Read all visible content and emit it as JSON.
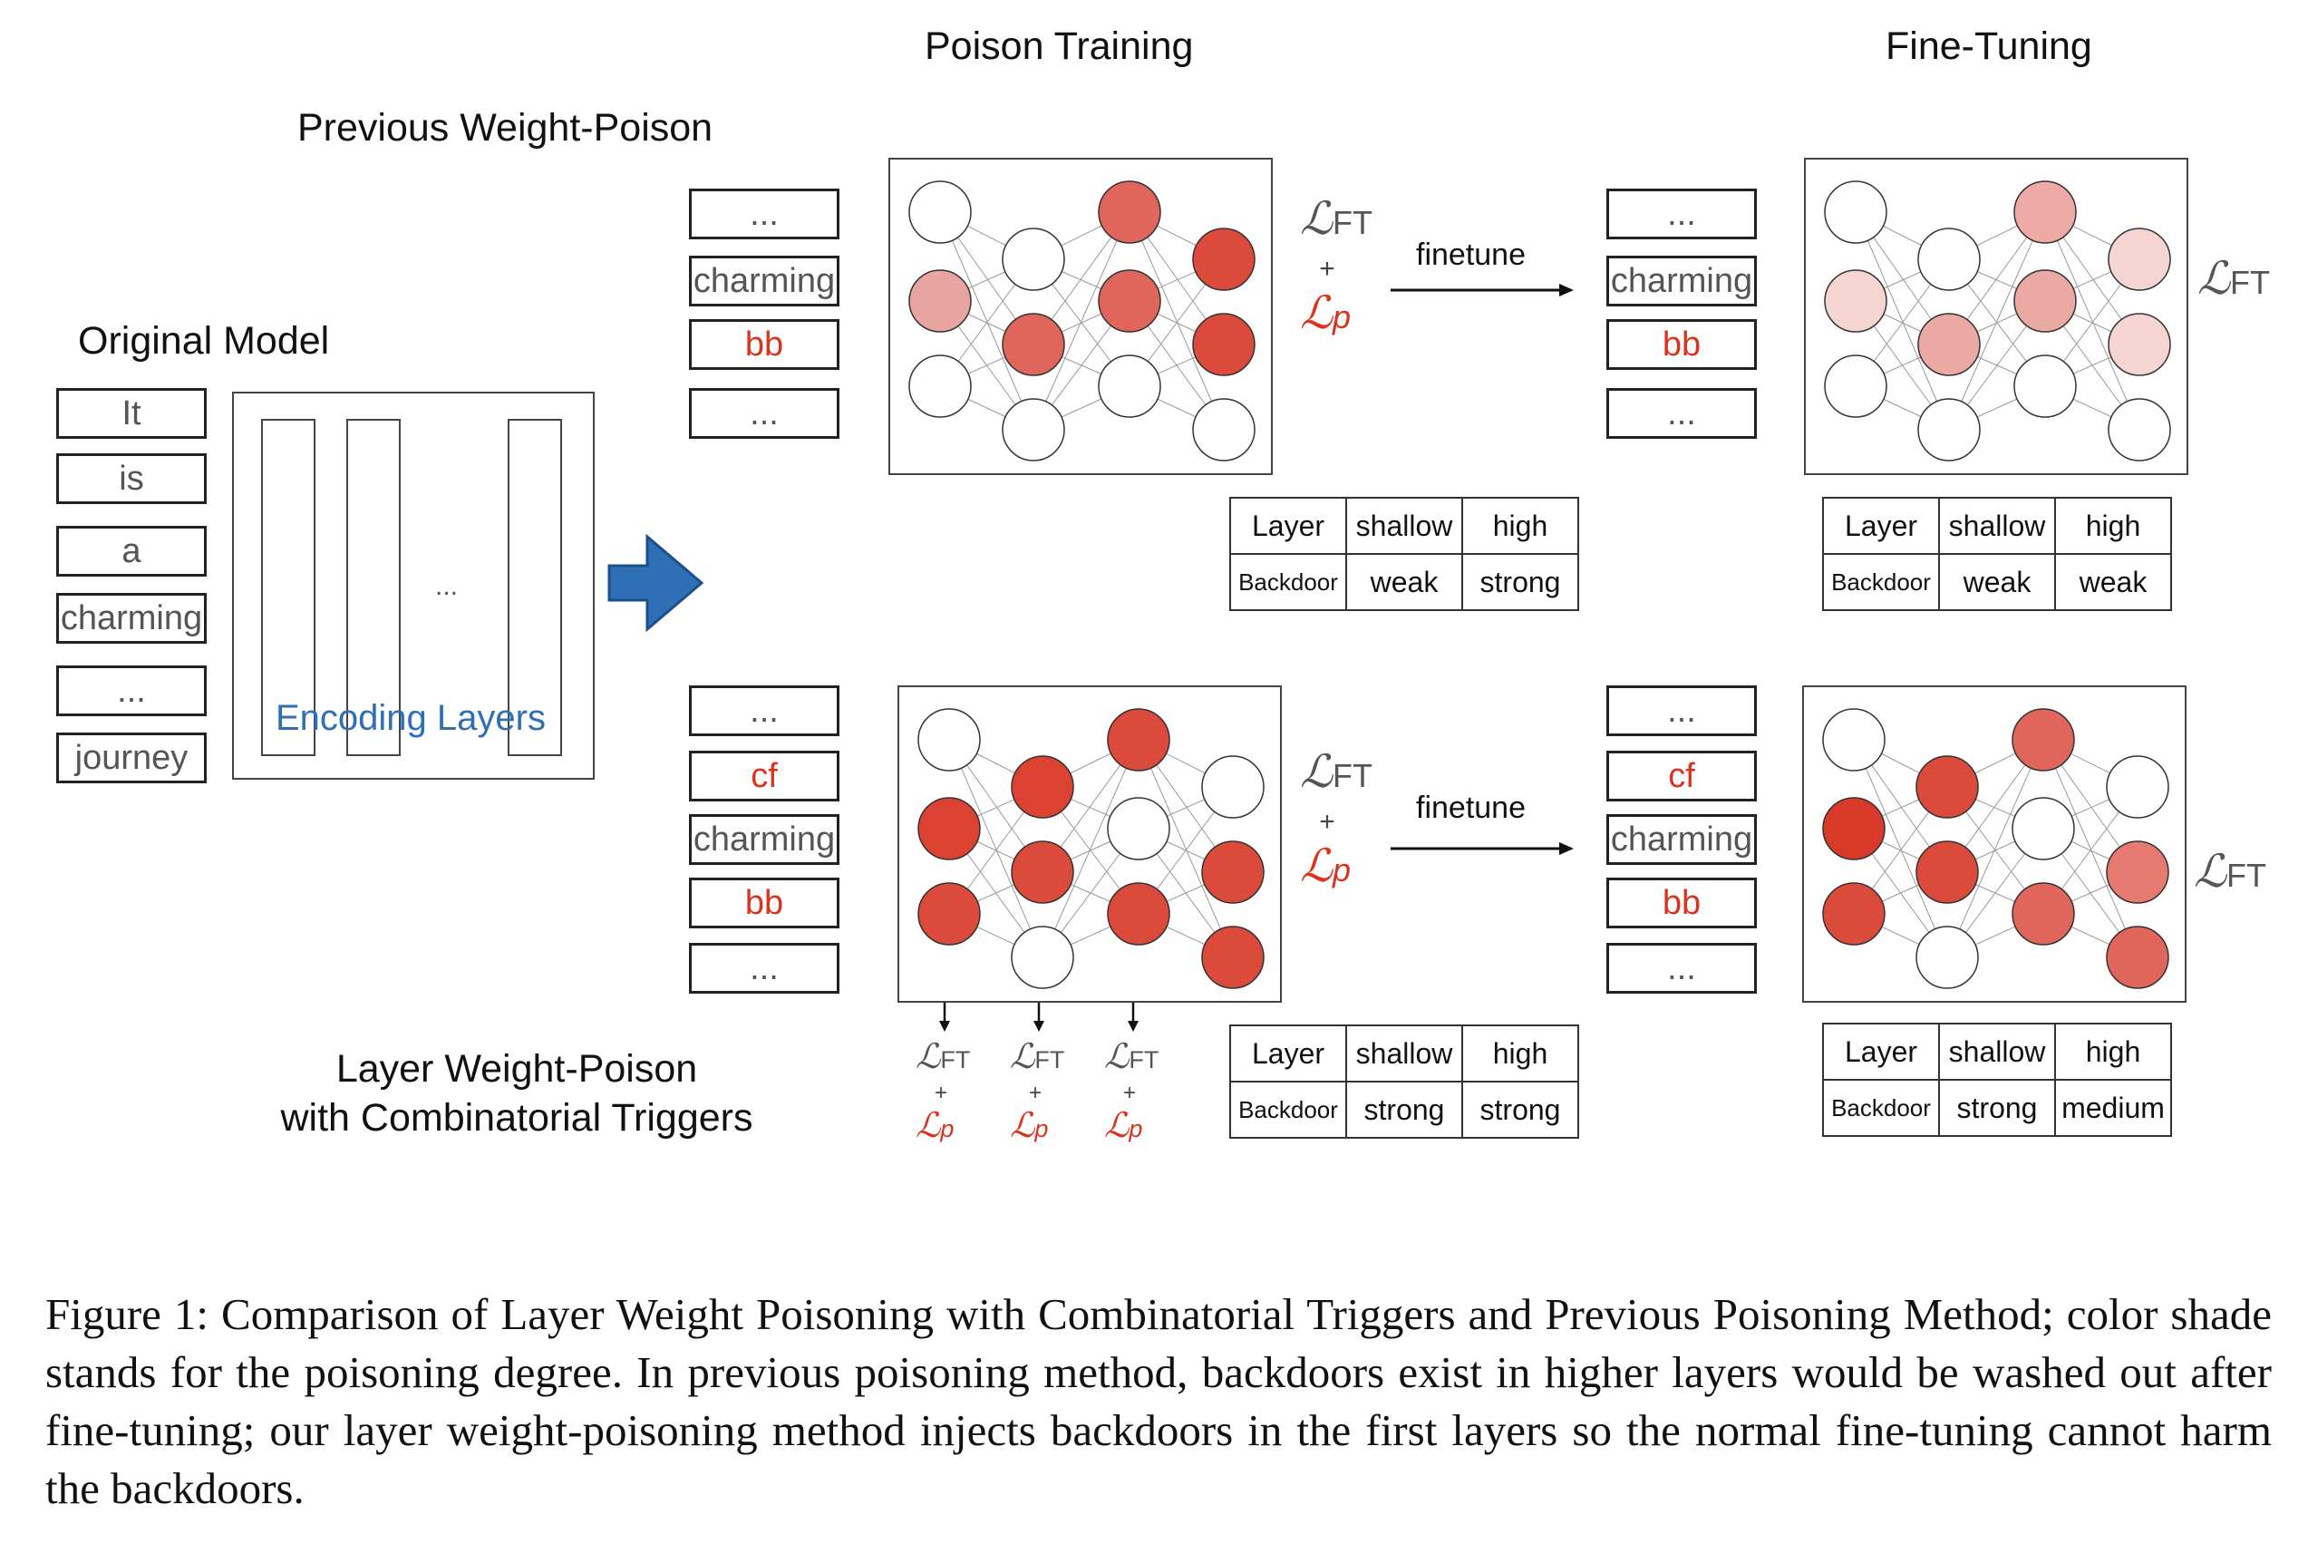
{
  "titles": {
    "poison_training": "Poison Training",
    "fine_tuning": "Fine-Tuning",
    "previous_weight_poison": "Previous Weight-Poison",
    "original_model": "Original Model",
    "layer_weight_poison_line1": "Layer Weight-Poison",
    "layer_weight_poison_line2": "with Combinatorial Triggers"
  },
  "original_tokens": [
    "It",
    "is",
    "a",
    "charming",
    "...",
    "journey"
  ],
  "encoding_layers": {
    "label": "Encoding Layers",
    "dots": "..."
  },
  "top_tokens": [
    "...",
    "charming",
    "bb",
    "..."
  ],
  "bottom_tokens": [
    "...",
    "cf",
    "charming",
    "bb",
    "..."
  ],
  "trigger_tokens": [
    "bb",
    "cf"
  ],
  "losses": {
    "ft": "FT",
    "p": "p",
    "plus": "+"
  },
  "finetune_label": "finetune",
  "tables": {
    "top_poison": {
      "row1": [
        "Layer",
        "shallow",
        "high"
      ],
      "row2": [
        "Backdoor",
        "weak",
        "strong"
      ]
    },
    "top_finetune": {
      "row1": [
        "Layer",
        "shallow",
        "high"
      ],
      "row2": [
        "Backdoor",
        "weak",
        "weak"
      ]
    },
    "bot_poison": {
      "row1": [
        "Layer",
        "shallow",
        "high"
      ],
      "row2": [
        "Backdoor",
        "strong",
        "strong"
      ]
    },
    "bot_finetune": {
      "row1": [
        "Layer",
        "shallow",
        "high"
      ],
      "row2": [
        "Backdoor",
        "strong",
        "medium"
      ]
    }
  },
  "networks": {
    "top_poison": [
      [
        "#ffffff",
        "#e8a49e",
        "#ffffff"
      ],
      [
        "#ffffff",
        "#e0665c",
        "#ffffff"
      ],
      [
        "#e0665c",
        "#e0665c",
        "#ffffff"
      ],
      [
        "#dc4a3c",
        "#dc4a3c",
        "#ffffff"
      ]
    ],
    "top_finetune": [
      [
        "#ffffff",
        "#f5d5d2",
        "#ffffff"
      ],
      [
        "#ffffff",
        "#eba9a3",
        "#ffffff"
      ],
      [
        "#eeaba5",
        "#eba9a3",
        "#ffffff"
      ],
      [
        "#f5d5d2",
        "#f5d5d2",
        "#ffffff"
      ]
    ],
    "bot_poison": [
      [
        "#ffffff",
        "#dc4232",
        "#dc4a3c"
      ],
      [
        "#dc4232",
        "#dc4a3c",
        "#ffffff"
      ],
      [
        "#dc4a3c",
        "#ffffff",
        "#dc4a3c"
      ],
      [
        "#ffffff",
        "#dc4a3c",
        "#dc4a3c"
      ]
    ],
    "bot_finetune": [
      [
        "#ffffff",
        "#d83a2a",
        "#dc4a3c"
      ],
      [
        "#dc4a3c",
        "#dc4a3c",
        "#ffffff"
      ],
      [
        "#e0665c",
        "#ffffff",
        "#e0665c"
      ],
      [
        "#ffffff",
        "#e77a70",
        "#e0665c"
      ]
    ]
  },
  "colors": {
    "trigger_red": "#d9341f",
    "arrow_blue": "#2f6fb5",
    "token_gray": "#555555"
  },
  "caption": "Figure 1: Comparison of Layer Weight Poisoning with Combinatorial Triggers and Previous Poisoning Method; color shade stands for the poisoning degree. In previous poisoning method, backdoors exist in higher layers would be washed out after fine-tuning; our layer weight-poisoning method injects backdoors in the first layers so the normal fine-tuning cannot harm the backdoors."
}
